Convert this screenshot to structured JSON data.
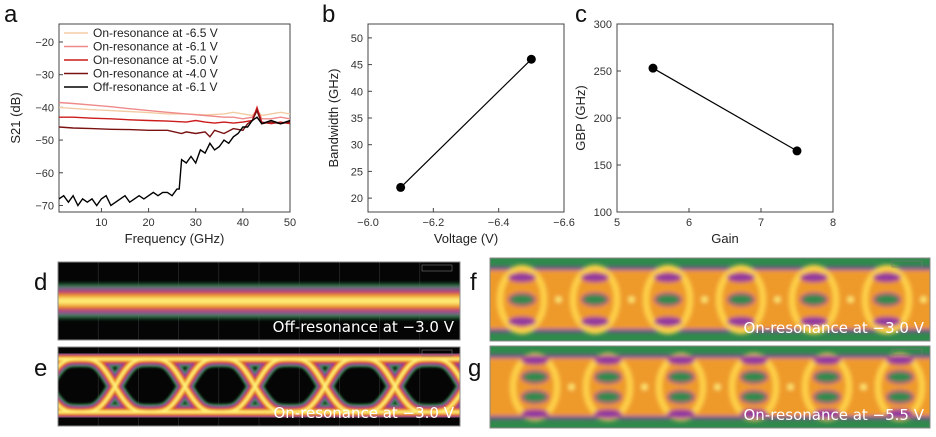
{
  "chart_data": [
    {
      "panel": "a",
      "type": "line",
      "xlabel": "Frequency (GHz)",
      "ylabel": "S21 (dB)",
      "xlim": [
        1,
        50
      ],
      "ylim": [
        -72,
        -14.5
      ],
      "xticks": [
        10,
        20,
        30,
        40,
        50
      ],
      "yticks": [
        -20,
        -30,
        -40,
        -50,
        -60,
        -70
      ],
      "grid": false,
      "legend_position": "top-left",
      "series": [
        {
          "name": "On-resonance at -6.5 V",
          "color": "#f3cba3",
          "x": [
            1,
            4,
            8,
            12,
            16,
            20,
            24,
            28,
            32,
            36,
            38,
            40,
            42,
            43,
            44,
            46,
            48,
            50
          ],
          "y": [
            -40,
            -40.3,
            -40.7,
            -41,
            -41.3,
            -41.6,
            -42,
            -42,
            -42.3,
            -42,
            -41.5,
            -42,
            -42.5,
            -41,
            -42.5,
            -42,
            -41.5,
            -42
          ]
        },
        {
          "name": "On-resonance at -6.1 V",
          "color": "#ef8a8a",
          "x": [
            1,
            4,
            8,
            12,
            16,
            20,
            24,
            28,
            32,
            36,
            38,
            40,
            42,
            43,
            44,
            46,
            48,
            50
          ],
          "y": [
            -38.5,
            -38.8,
            -39.3,
            -39.8,
            -40.4,
            -41,
            -41.5,
            -42,
            -42.5,
            -43,
            -43,
            -43.5,
            -43,
            -40.5,
            -43.5,
            -43.5,
            -43,
            -43.5
          ]
        },
        {
          "name": "On-resonance at -5.0 V",
          "color": "#cc1b1b",
          "x": [
            1,
            4,
            8,
            12,
            16,
            20,
            24,
            28,
            30,
            32,
            34,
            36,
            38,
            40,
            42,
            43,
            44,
            46,
            48,
            50
          ],
          "y": [
            -43,
            -43,
            -43.3,
            -43.5,
            -43.8,
            -44,
            -44.2,
            -44.5,
            -44,
            -44.5,
            -44.8,
            -44.5,
            -44.8,
            -44.5,
            -44,
            -40,
            -44.5,
            -45,
            -44.5,
            -45
          ]
        },
        {
          "name": "On-resonance at -4.0 V",
          "color": "#7a1212",
          "x": [
            1,
            4,
            8,
            12,
            16,
            20,
            24,
            27,
            28,
            30,
            32,
            33,
            34,
            36,
            38,
            40,
            41,
            42,
            43,
            44,
            46,
            48,
            50
          ],
          "y": [
            -46,
            -46.3,
            -46.5,
            -46.7,
            -46.8,
            -47,
            -47,
            -48,
            -47.5,
            -48,
            -47.5,
            -49,
            -47,
            -48,
            -46.5,
            -47,
            -45,
            -44,
            -41,
            -45,
            -44.5,
            -45,
            -44.5
          ]
        },
        {
          "name": "Off-resonance at -6.1 V",
          "color": "#000000",
          "x": [
            1,
            2,
            3,
            4,
            5,
            6,
            7,
            8,
            9,
            10,
            11,
            12,
            13,
            14,
            15,
            16,
            17,
            18,
            19,
            20,
            21,
            22,
            23,
            24,
            25,
            26,
            26.5,
            27,
            28,
            29,
            30,
            31,
            32,
            33,
            34,
            35,
            36,
            37,
            38,
            39,
            40,
            41,
            42,
            43,
            44,
            46,
            48,
            50
          ],
          "y": [
            -68,
            -67,
            -69,
            -67,
            -70,
            -68,
            -69,
            -68,
            -70,
            -68,
            -67,
            -70,
            -69,
            -68,
            -67,
            -69,
            -68,
            -67,
            -68,
            -67,
            -66,
            -67,
            -66,
            -66,
            -67,
            -65,
            -65,
            -56,
            -57,
            -55,
            -57,
            -53,
            -54,
            -51,
            -53,
            -52,
            -50,
            -51,
            -49,
            -48,
            -46,
            -46,
            -44,
            -43,
            -45,
            -44,
            -45,
            -44
          ]
        }
      ]
    },
    {
      "panel": "b",
      "type": "line",
      "xlabel": "Voltage (V)",
      "ylabel": "Bandwidth (GHz)",
      "xlim": [
        -6.0,
        -6.6
      ],
      "ylim": [
        17.4,
        52.6
      ],
      "xticks": [
        -6.0,
        -6.2,
        -6.4,
        -6.6
      ],
      "xticklabels": [
        "−6.0",
        "−6.2",
        "−6.4",
        "−6.6"
      ],
      "yticks": [
        20,
        25,
        30,
        35,
        40,
        45,
        50
      ],
      "grid": false,
      "series": [
        {
          "color": "#000000",
          "x": [
            -6.1,
            -6.5
          ],
          "y": [
            22,
            46
          ]
        }
      ]
    },
    {
      "panel": "c",
      "type": "line",
      "xlabel": "Gain",
      "ylabel": "GBP (GHz)",
      "xlim": [
        5,
        8
      ],
      "ylim": [
        100,
        300
      ],
      "xticks": [
        5,
        6,
        7,
        8
      ],
      "yticks": [
        100,
        150,
        200,
        250,
        300
      ],
      "grid": false,
      "series": [
        {
          "color": "#000000",
          "x": [
            5.5,
            7.5
          ],
          "y": [
            253,
            165
          ]
        }
      ]
    }
  ],
  "eye_diagrams": [
    {
      "panel": "d",
      "caption": "Off-resonance at −3.0 V"
    },
    {
      "panel": "e",
      "caption": "On-resonance at −3.0 V"
    },
    {
      "panel": "f",
      "caption": "On-resonance at −3.0 V"
    },
    {
      "panel": "g",
      "caption": "On-resonance at −5.5 V"
    }
  ]
}
